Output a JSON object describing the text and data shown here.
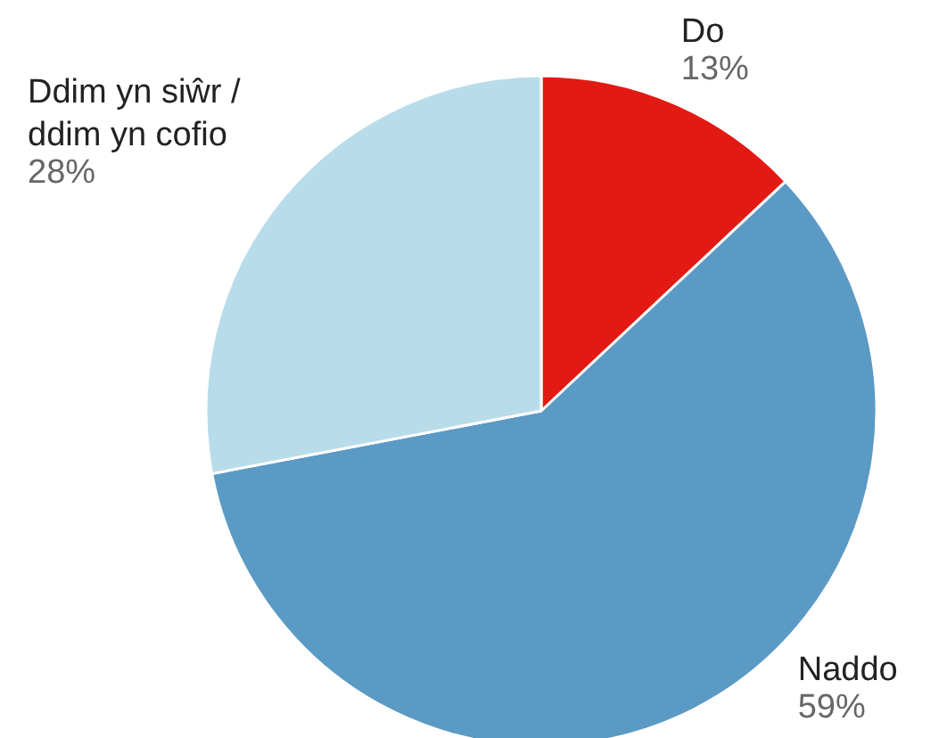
{
  "chart_data": {
    "type": "pie",
    "categories": [
      "Do",
      "Naddo",
      "Ddim yn siŵr /\nddim yn cofio"
    ],
    "values": [
      13,
      59,
      28
    ],
    "value_labels": [
      "13%",
      "59%",
      "28%"
    ],
    "colors": [
      "#e31a13",
      "#5b9ac4",
      "#b9dcea"
    ]
  }
}
